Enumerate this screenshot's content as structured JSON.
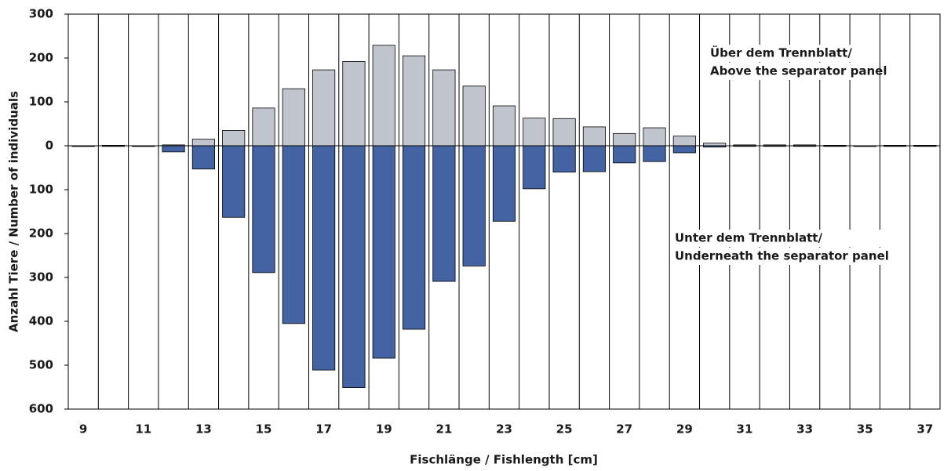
{
  "chart_data": {
    "type": "bar",
    "x_label": "Fischlänge / Fishlength [cm]",
    "y_label": "Anzahl Tiere / Number of individuals",
    "categories": [
      "9",
      null,
      "11",
      null,
      "13",
      null,
      "15",
      null,
      "17",
      null,
      "19",
      null,
      "21",
      null,
      "23",
      null,
      "25",
      null,
      "27",
      null,
      "29",
      null,
      "31",
      null,
      "33",
      null,
      "35",
      null,
      "37"
    ],
    "series": [
      {
        "color": "#c0c4cc",
        "values": [
          0,
          1,
          0,
          2,
          15,
          35,
          86,
          130,
          173,
          192,
          229,
          205,
          173,
          136,
          91,
          63,
          62,
          43,
          28,
          41,
          22,
          6,
          2,
          2,
          2,
          1,
          0,
          1,
          1
        ]
      },
      {
        "color": "#4363a2",
        "values": [
          -1,
          0,
          -1,
          -14,
          -53,
          -163,
          -289,
          -405,
          -511,
          -551,
          -484,
          -418,
          -309,
          -274,
          -172,
          -98,
          -60,
          -59,
          -39,
          -36,
          -16,
          -3,
          0,
          0,
          0,
          0,
          0,
          0,
          0
        ]
      }
    ],
    "annotations": [
      {
        "lines": [
          "Über dem Trennblatt/",
          "Above the separator panel"
        ]
      },
      {
        "lines": [
          "Unter dem Trennblatt/",
          "Underneath the separator panel"
        ]
      }
    ],
    "ylim": [
      -600,
      300
    ],
    "yticks": [
      300,
      200,
      100,
      0,
      {
        "value": -100,
        "label": "100"
      },
      {
        "value": -200,
        "label": "200"
      },
      {
        "value": -300,
        "label": "300"
      },
      {
        "value": -400,
        "label": "400"
      },
      {
        "value": -500,
        "label": "500"
      },
      {
        "value": -600,
        "label": "600"
      }
    ]
  }
}
